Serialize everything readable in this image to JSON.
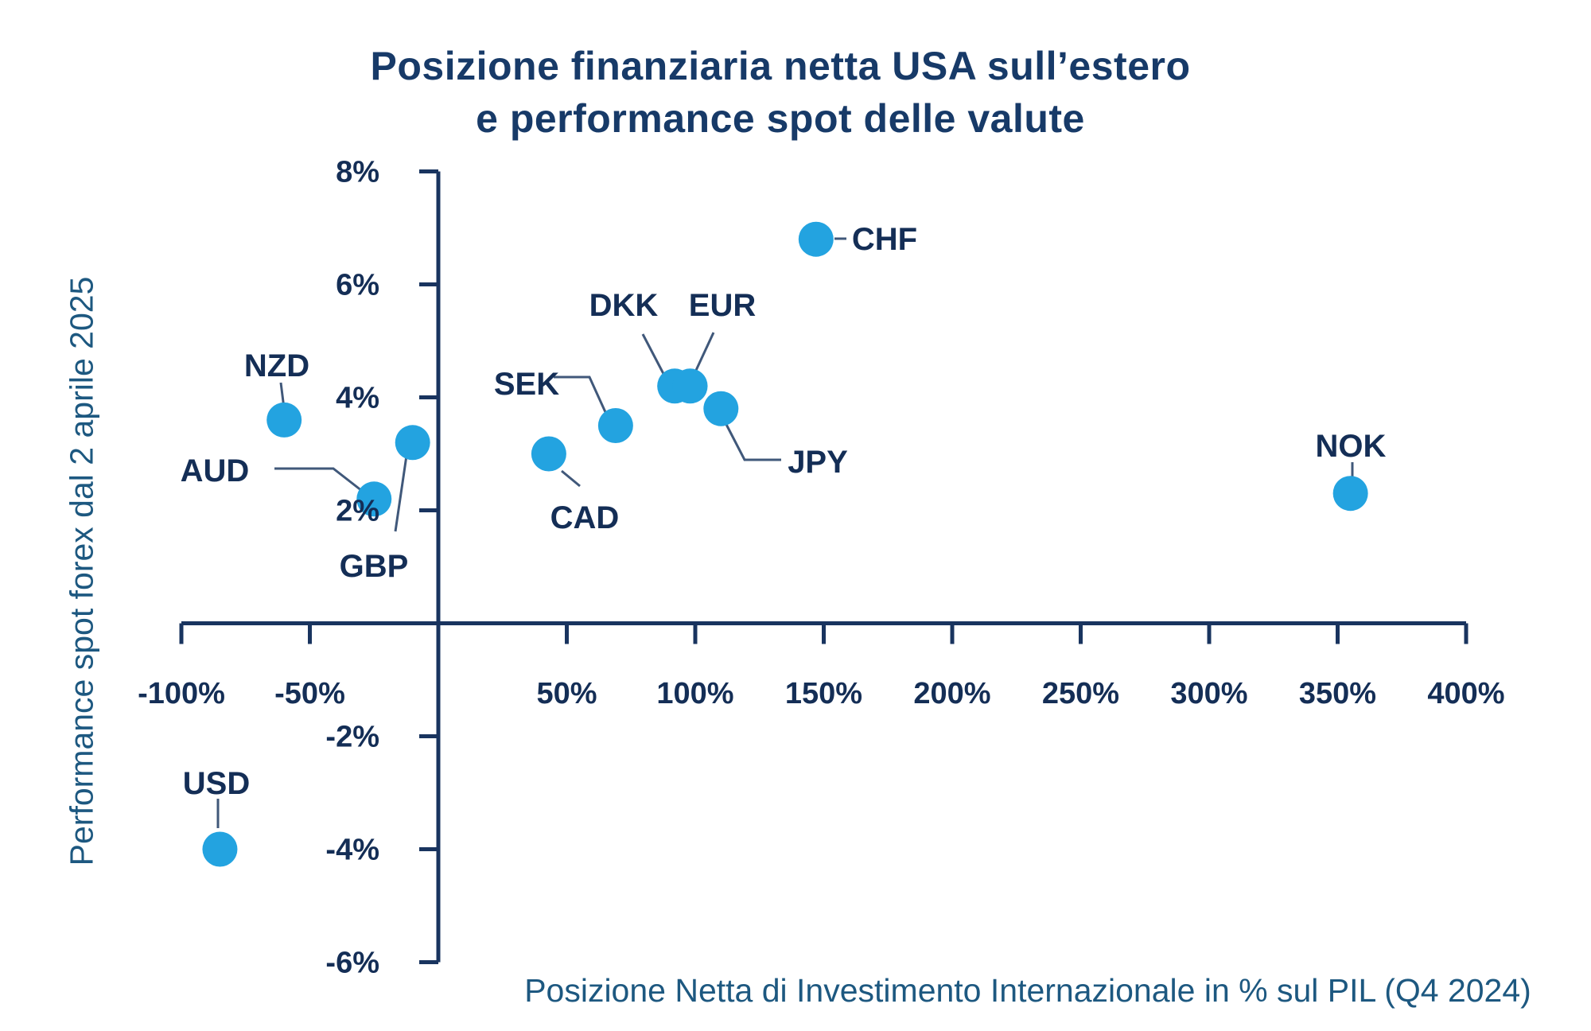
{
  "title": {
    "line1": "Posizione finanziaria netta USA sull’estero",
    "line2": "e performance spot delle valute"
  },
  "x_axis": {
    "caption": "Posizione Netta di Investimento Internazionale in % sul PIL (Q4 2024)",
    "tick_values": [
      -100,
      -50,
      50,
      100,
      150,
      200,
      250,
      300,
      350,
      400
    ],
    "tick_labels": [
      "-100%",
      "-50%",
      "50%",
      "100%",
      "150%",
      "200%",
      "250%",
      "300%",
      "350%",
      "400%"
    ]
  },
  "y_axis": {
    "caption": "Performance spot forex dal 2 aprile 2025",
    "tick_values": [
      8,
      6,
      4,
      2,
      -2,
      -4,
      -6
    ],
    "tick_labels": [
      "8%",
      "6%",
      "4%",
      "2%",
      "-2%",
      "-4%",
      "-6%"
    ]
  },
  "chart_data": {
    "type": "scatter",
    "title": "Posizione finanziaria netta USA sull’estero e performance spot delle valute",
    "xlabel": "Posizione Netta di Investimento Internazionale in % sul PIL (Q4 2024)",
    "ylabel": "Performance spot forex dal 2 aprile 2025",
    "xlim": [
      -100,
      400
    ],
    "ylim": [
      -6,
      8
    ],
    "grid": false,
    "legend": "none",
    "x_unit": "% of GDP",
    "y_unit": "% spot performance",
    "points": [
      {
        "label": "USD",
        "x": -85,
        "y": -4.0
      },
      {
        "label": "NZD",
        "x": -60,
        "y": 3.6
      },
      {
        "label": "AUD",
        "x": -25,
        "y": 2.2
      },
      {
        "label": "GBP",
        "x": -10,
        "y": 3.2
      },
      {
        "label": "CAD",
        "x": 43,
        "y": 3.0
      },
      {
        "label": "SEK",
        "x": 69,
        "y": 3.5
      },
      {
        "label": "DKK",
        "x": 92,
        "y": 4.2
      },
      {
        "label": "EUR",
        "x": 98,
        "y": 4.2
      },
      {
        "label": "JPY",
        "x": 110,
        "y": 3.8
      },
      {
        "label": "CHF",
        "x": 147,
        "y": 6.8
      },
      {
        "label": "NOK",
        "x": 355,
        "y": 2.3
      }
    ]
  },
  "colors": {
    "background": "#ffffff",
    "dot": "#23a3e0",
    "axis": "#19345f",
    "tick_label": "#142e56",
    "point_label": "#142e56",
    "title": "#173a68",
    "caption": "#1d5880",
    "connector": "#40587a"
  }
}
